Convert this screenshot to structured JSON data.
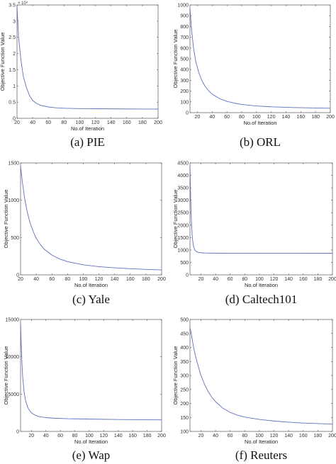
{
  "chart_data": [
    {
      "type": "line",
      "caption": "(a) PIE",
      "xlabel": "No.of Iteration",
      "ylabel": "Objective Function Value",
      "y_exponent": "× 10⁴",
      "xlim": [
        20,
        200
      ],
      "ylim": [
        0,
        35000
      ],
      "xticks": [
        20,
        40,
        60,
        80,
        100,
        120,
        140,
        160,
        180,
        200
      ],
      "yticks": [
        0,
        5000,
        10000,
        15000,
        20000,
        25000,
        30000,
        35000
      ],
      "ytick_labels": [
        "0",
        "0.5",
        "1",
        "1.5",
        "2",
        "2.5",
        "3",
        "3.5"
      ],
      "line_color": "#5b6fc0",
      "x": [
        20,
        22,
        25,
        28,
        32,
        36,
        40,
        45,
        50,
        60,
        70,
        80,
        100,
        120,
        150,
        180,
        200
      ],
      "y": [
        34500,
        25000,
        18000,
        13000,
        9500,
        7000,
        5500,
        4600,
        4000,
        3500,
        3250,
        3100,
        3000,
        2950,
        2900,
        2860,
        2850
      ]
    },
    {
      "type": "line",
      "caption": "(b) ORL",
      "xlabel": "No.of Iteration",
      "ylabel": "Objective Function Value",
      "xlim": [
        10,
        200
      ],
      "ylim": [
        0,
        1000
      ],
      "xticks": [
        20,
        40,
        60,
        80,
        100,
        120,
        140,
        160,
        180,
        200
      ],
      "yticks": [
        0,
        100,
        200,
        300,
        400,
        500,
        600,
        700,
        800,
        900,
        1000
      ],
      "ytick_labels": [
        "0",
        "100",
        "200",
        "300",
        "400",
        "500",
        "600",
        "700",
        "800",
        "900",
        "1000"
      ],
      "line_color": "#5b6fc0",
      "x": [
        10,
        12,
        15,
        18,
        22,
        26,
        30,
        35,
        40,
        50,
        60,
        70,
        80,
        100,
        120,
        150,
        180,
        200
      ],
      "y": [
        970,
        780,
        590,
        470,
        370,
        300,
        250,
        205,
        172,
        130,
        105,
        88,
        76,
        62,
        54,
        47,
        43,
        41
      ]
    },
    {
      "type": "line",
      "caption": "(c) Yale",
      "xlabel": "No.of Iteration",
      "ylabel": "Objective Function Value",
      "xlim": [
        20,
        200
      ],
      "ylim": [
        0,
        1500
      ],
      "xticks": [
        20,
        40,
        60,
        80,
        100,
        120,
        140,
        160,
        180,
        200
      ],
      "yticks": [
        0,
        500,
        1000,
        1500
      ],
      "ytick_labels": [
        "0",
        "500",
        "1000",
        "1500"
      ],
      "line_color": "#5b6fc0",
      "x": [
        20,
        22,
        25,
        28,
        32,
        36,
        40,
        45,
        50,
        60,
        70,
        80,
        100,
        120,
        140,
        160,
        180,
        200
      ],
      "y": [
        1460,
        1270,
        1040,
        870,
        700,
        585,
        490,
        410,
        345,
        265,
        212,
        177,
        135,
        110,
        94,
        82,
        73,
        66
      ]
    },
    {
      "type": "line",
      "caption": "(d) Caltech101",
      "xlabel": "No.of Iteration",
      "ylabel": "Objective Function Value",
      "xlim": [
        5,
        200
      ],
      "ylim": [
        0,
        4500
      ],
      "xticks": [
        20,
        40,
        60,
        80,
        100,
        120,
        140,
        160,
        180,
        200
      ],
      "yticks": [
        0,
        500,
        1000,
        1500,
        2000,
        2500,
        3000,
        3500,
        4000,
        4500
      ],
      "ytick_labels": [
        "0",
        "500",
        "1000",
        "1500",
        "2000",
        "2500",
        "3000",
        "3500",
        "4000",
        "4500"
      ],
      "line_color": "#5b6fc0",
      "x": [
        5,
        6,
        7,
        8,
        9,
        10,
        12,
        14,
        17,
        20,
        25,
        30,
        40,
        60,
        100,
        150,
        200
      ],
      "y": [
        4400,
        3000,
        2100,
        1600,
        1300,
        1120,
        980,
        930,
        900,
        890,
        880,
        875,
        872,
        870,
        868,
        866,
        865
      ]
    },
    {
      "type": "line",
      "caption": "(e) Wap",
      "xlabel": "No.of Iteration",
      "ylabel": "Objective Function Value",
      "xlim": [
        5,
        200
      ],
      "ylim": [
        0,
        15000
      ],
      "xticks": [
        20,
        40,
        60,
        80,
        100,
        120,
        140,
        160,
        180,
        200
      ],
      "yticks": [
        0,
        5000,
        10000,
        15000
      ],
      "ytick_labels": [
        "0",
        "5000",
        "10000",
        "15000"
      ],
      "line_color": "#5b6fc0",
      "x": [
        5,
        6,
        7,
        8,
        10,
        12,
        15,
        18,
        22,
        26,
        30,
        40,
        50,
        70,
        100,
        140,
        180,
        200
      ],
      "y": [
        14500,
        11500,
        9000,
        7200,
        5200,
        4100,
        3200,
        2700,
        2350,
        2150,
        2000,
        1850,
        1780,
        1700,
        1650,
        1600,
        1560,
        1550
      ]
    },
    {
      "type": "line",
      "caption": "(f) Reuters",
      "xlabel": "No.of Iteration",
      "ylabel": "Objective Function Value",
      "xlim": [
        5,
        200
      ],
      "ylim": [
        100,
        500
      ],
      "xticks": [
        20,
        40,
        60,
        80,
        100,
        120,
        140,
        160,
        180,
        200
      ],
      "yticks": [
        100,
        150,
        200,
        250,
        300,
        350,
        400,
        450,
        500
      ],
      "ytick_labels": [
        "100",
        "150",
        "200",
        "250",
        "300",
        "350",
        "400",
        "450",
        "500"
      ],
      "line_color": "#5b6fc0",
      "x": [
        5,
        6,
        8,
        10,
        12,
        15,
        20,
        25,
        30,
        35,
        40,
        50,
        60,
        70,
        80,
        100,
        120,
        140,
        160,
        180,
        200
      ],
      "y": [
        470,
        460,
        430,
        400,
        375,
        345,
        300,
        268,
        242,
        222,
        206,
        183,
        168,
        158,
        151,
        143,
        137,
        133,
        130,
        128,
        126
      ]
    }
  ]
}
